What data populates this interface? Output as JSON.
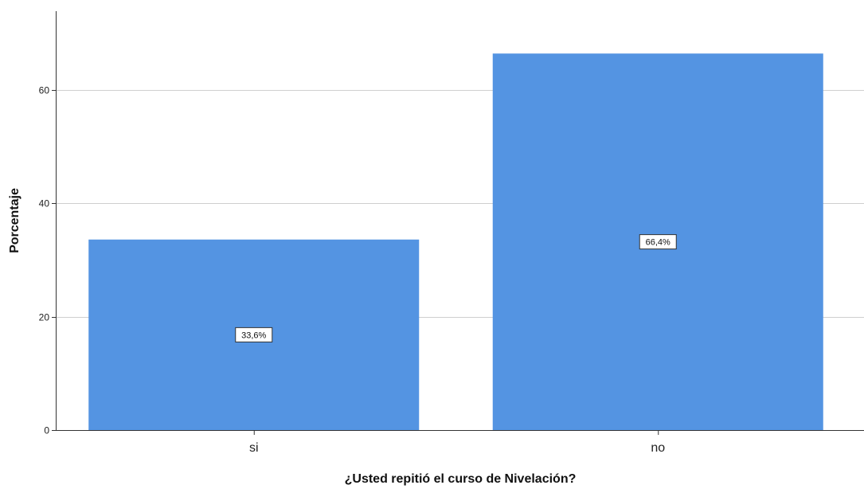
{
  "chart_data": {
    "type": "bar",
    "categories": [
      "si",
      "no"
    ],
    "values": [
      33.6,
      66.4
    ],
    "data_labels": [
      "33,6%",
      "66,4%"
    ],
    "title": "",
    "xlabel": "¿Usted repitió el curso de Nivelación?",
    "ylabel": "Porcentaje",
    "ylim": [
      0,
      75
    ],
    "yticks": [
      0,
      20,
      40,
      60
    ],
    "ytick_labels": [
      "0",
      "20",
      "40",
      "60"
    ],
    "grid": true,
    "legend": "none",
    "bar_color": "#5494E2"
  }
}
